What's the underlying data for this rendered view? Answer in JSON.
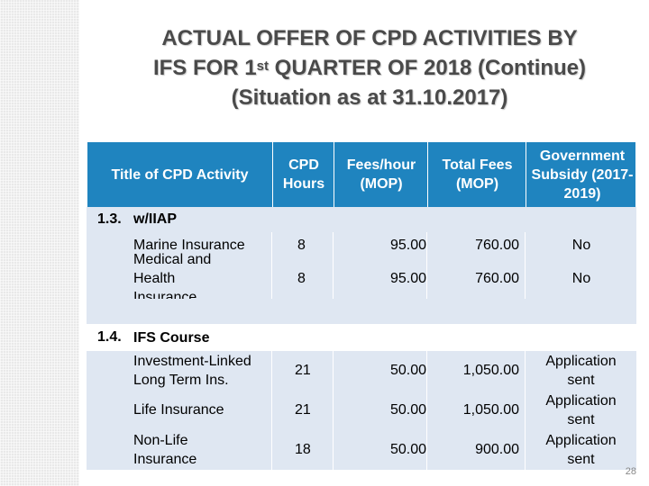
{
  "title": {
    "line1": "ACTUAL OFFER OF CPD ACTIVITIES BY",
    "line2_pre": "IFS FOR 1",
    "line2_sup": "st",
    "line2_post": " QUARTER OF 2018 (Continue)",
    "line3": "(Situation as at 31.10.2017)"
  },
  "table": {
    "headers": {
      "title": "Title of CPD Activity",
      "hours": "CPD Hours",
      "fees": "Fees/hour (MOP)",
      "total": "Total Fees (MOP)",
      "subsidy": "Government Subsidy (2017-2019)"
    },
    "sections": [
      {
        "number": "1.3.",
        "name": "w/IIAP",
        "rows": [
          {
            "title": "Marine Insurance",
            "hours": "8",
            "fees": "95.00",
            "total": "760.00",
            "subsidy": "No"
          },
          {
            "title": "Medical and Health Insurance",
            "hours": "8",
            "fees": "95.00",
            "total": "760.00",
            "subsidy": "No"
          }
        ]
      },
      {
        "number": "1.4.",
        "name": "IFS Course",
        "rows": [
          {
            "title": "Investment-Linked Long Term Ins.",
            "hours": "21",
            "fees": "50.00",
            "total": "1,050.00",
            "subsidy": "Application sent"
          },
          {
            "title": "Life Insurance",
            "hours": "21",
            "fees": "50.00",
            "total": "1,050.00",
            "subsidy": "Application sent"
          },
          {
            "title": "Non-Life Insurance",
            "hours": "18",
            "fees": "50.00",
            "total": "900.00",
            "subsidy": "Application sent"
          }
        ]
      }
    ]
  },
  "page_number": "28",
  "colors": {
    "header": "#1f84bf",
    "row": "#dfe7f2",
    "title_text": "#4a4a4a"
  }
}
